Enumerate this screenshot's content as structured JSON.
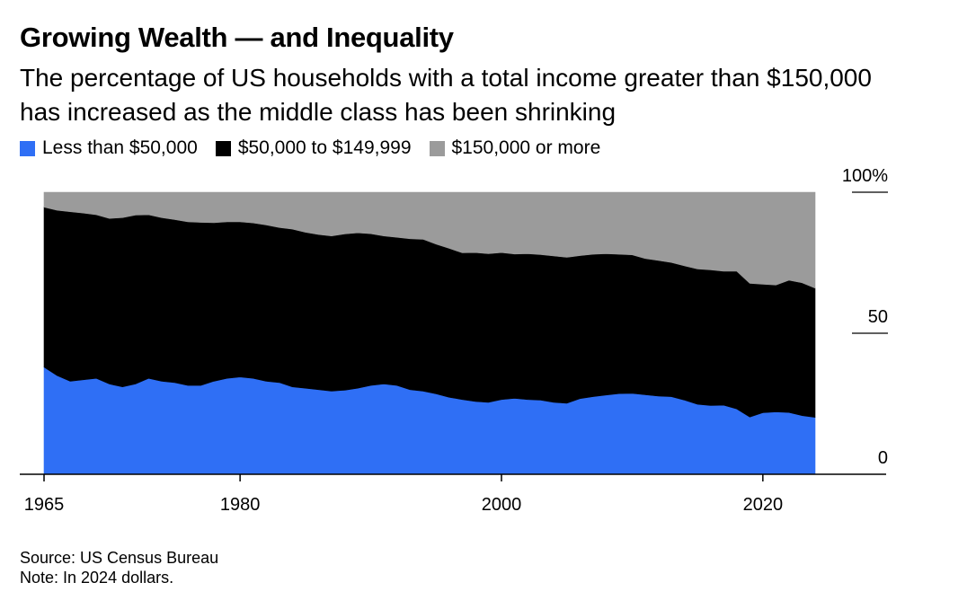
{
  "title": "Growing Wealth — and Inequality",
  "subtitle": "The percentage of US households with a total income greater than $150,000 has increased as the middle class has been shrinking",
  "footer": {
    "source": "Source: US Census Bureau",
    "note": "Note: In 2024 dollars."
  },
  "colors": {
    "low": "#2f6ff5",
    "middle": "#000000",
    "high": "#9b9b9b"
  },
  "chart_data": {
    "type": "area",
    "stacked": true,
    "title": "Growing Wealth — and Inequality",
    "ylabel": "",
    "xlabel": "",
    "ylim": [
      0,
      100
    ],
    "xlim": [
      1965,
      2030
    ],
    "x_ticks": [
      {
        "value": 1965,
        "label": "1965"
      },
      {
        "value": 1980,
        "label": "1980"
      },
      {
        "value": 2000,
        "label": "2000"
      },
      {
        "value": 2020,
        "label": "2020"
      }
    ],
    "y_ticks": [
      {
        "value": 100,
        "label": "100%"
      },
      {
        "value": 50,
        "label": "50"
      },
      {
        "value": 0,
        "label": "0"
      }
    ],
    "legend_position": "top-left",
    "x": [
      1965,
      1966,
      1967,
      1968,
      1969,
      1970,
      1971,
      1972,
      1973,
      1974,
      1975,
      1976,
      1977,
      1978,
      1979,
      1980,
      1981,
      1982,
      1983,
      1984,
      1985,
      1986,
      1987,
      1988,
      1989,
      1990,
      1991,
      1992,
      1993,
      1994,
      1995,
      1996,
      1997,
      1998,
      1999,
      2000,
      2001,
      2002,
      2003,
      2004,
      2005,
      2006,
      2007,
      2008,
      2009,
      2010,
      2011,
      2012,
      2013,
      2014,
      2015,
      2016,
      2017,
      2018,
      2019,
      2020,
      2021,
      2022,
      2023,
      2024
    ],
    "series": [
      {
        "name": "Less than $50,000",
        "values": [
          38,
          35,
          33,
          33.5,
          34,
          32,
          31,
          32,
          34,
          33,
          32.5,
          31.5,
          31.5,
          33,
          34,
          34.5,
          34,
          33,
          32.5,
          31,
          30.5,
          30,
          29.5,
          29.8,
          30.5,
          31.5,
          32,
          31.5,
          30,
          29.5,
          28.5,
          27.3,
          26.5,
          25.8,
          25.5,
          26.5,
          26.9,
          26.5,
          26.3,
          25.5,
          25.2,
          26.8,
          27.5,
          28.1,
          28.6,
          28.7,
          28.2,
          27.7,
          27.5,
          26.3,
          24.8,
          24.4,
          24.5,
          23.2,
          20.3,
          21.8,
          22.1,
          21.9,
          20.8,
          20.2
        ]
      },
      {
        "name": "$50,000 to $149,999",
        "values": [
          56.7,
          58.6,
          60.1,
          59.1,
          58,
          58.7,
          60,
          59.9,
          58,
          58,
          57.8,
          58,
          57.8,
          56.2,
          55.5,
          55,
          55.1,
          55.4,
          55,
          55.9,
          55.3,
          55,
          55,
          55.4,
          55.1,
          53.8,
          52.5,
          52.5,
          53.5,
          53.8,
          53.1,
          52.8,
          52,
          52.8,
          52.7,
          52.1,
          51.2,
          51.7,
          51.6,
          51.9,
          51.7,
          50.7,
          50.5,
          50.1,
          49.4,
          49.1,
          48.3,
          48.1,
          47.6,
          47.6,
          48,
          48.1,
          47.5,
          48.8,
          47.4,
          45.6,
          45,
          46.9,
          47.1,
          45.8
        ]
      },
      {
        "name": "$150,000 or more",
        "values": [
          5.3,
          6.4,
          6.9,
          7.4,
          8,
          9.3,
          9,
          8.1,
          8,
          9,
          9.7,
          10.5,
          10.7,
          10.8,
          10.5,
          10.5,
          10.9,
          11.6,
          12.5,
          13.1,
          14.2,
          15,
          15.5,
          14.8,
          14.4,
          14.7,
          15.5,
          16,
          16.5,
          16.7,
          18.4,
          19.9,
          21.5,
          21.4,
          21.8,
          21.4,
          21.9,
          21.8,
          22.1,
          22.6,
          23.1,
          22.5,
          22,
          21.8,
          22,
          22.2,
          23.5,
          24.2,
          24.9,
          26.1,
          27.2,
          27.5,
          28,
          28,
          32.3,
          32.6,
          32.9,
          31.2,
          32.1,
          34
        ]
      }
    ]
  }
}
